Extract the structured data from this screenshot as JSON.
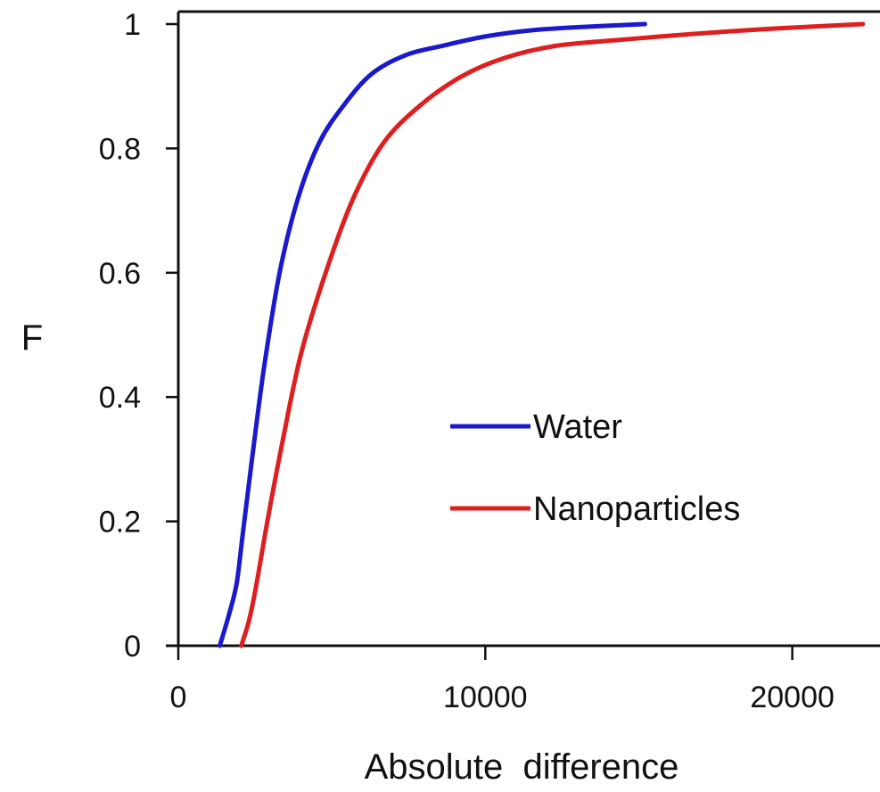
{
  "chart_data": {
    "type": "line",
    "title": "",
    "xlabel": "Absolute  difference",
    "ylabel": "F",
    "xlim": [
      0,
      22500
    ],
    "ylim": [
      0,
      1
    ],
    "x_ticks": [
      "0",
      "10000",
      "20000"
    ],
    "x_tick_values": [
      0,
      10000,
      20000
    ],
    "y_ticks": [
      "0",
      "0.2",
      "0.4",
      "0.6",
      "0.8",
      "1"
    ],
    "y_tick_values": [
      0,
      0.2,
      0.4,
      0.6,
      0.8,
      1
    ],
    "grid": false,
    "legend": "center-right",
    "series": [
      {
        "name": "Water",
        "color": "#1a1acc",
        "points": [
          [
            1350,
            0
          ],
          [
            1650,
            0.05
          ],
          [
            1900,
            0.1
          ],
          [
            2100,
            0.18
          ],
          [
            2400,
            0.3
          ],
          [
            2800,
            0.45
          ],
          [
            3300,
            0.6
          ],
          [
            3900,
            0.72
          ],
          [
            4600,
            0.81
          ],
          [
            5400,
            0.87
          ],
          [
            6300,
            0.92
          ],
          [
            7400,
            0.95
          ],
          [
            8600,
            0.965
          ],
          [
            10000,
            0.98
          ],
          [
            11500,
            0.99
          ],
          [
            13000,
            0.995
          ],
          [
            15200,
            1.0
          ]
        ]
      },
      {
        "name": "Nanoparticles",
        "color": "#dd1f1f",
        "points": [
          [
            2050,
            0
          ],
          [
            2300,
            0.04
          ],
          [
            2550,
            0.1
          ],
          [
            2900,
            0.2
          ],
          [
            3400,
            0.33
          ],
          [
            4000,
            0.47
          ],
          [
            4800,
            0.6
          ],
          [
            5700,
            0.72
          ],
          [
            6700,
            0.81
          ],
          [
            7900,
            0.87
          ],
          [
            9200,
            0.915
          ],
          [
            10600,
            0.945
          ],
          [
            12300,
            0.965
          ],
          [
            14500,
            0.975
          ],
          [
            17000,
            0.985
          ],
          [
            19500,
            0.993
          ],
          [
            22300,
            1.0
          ]
        ]
      }
    ]
  }
}
